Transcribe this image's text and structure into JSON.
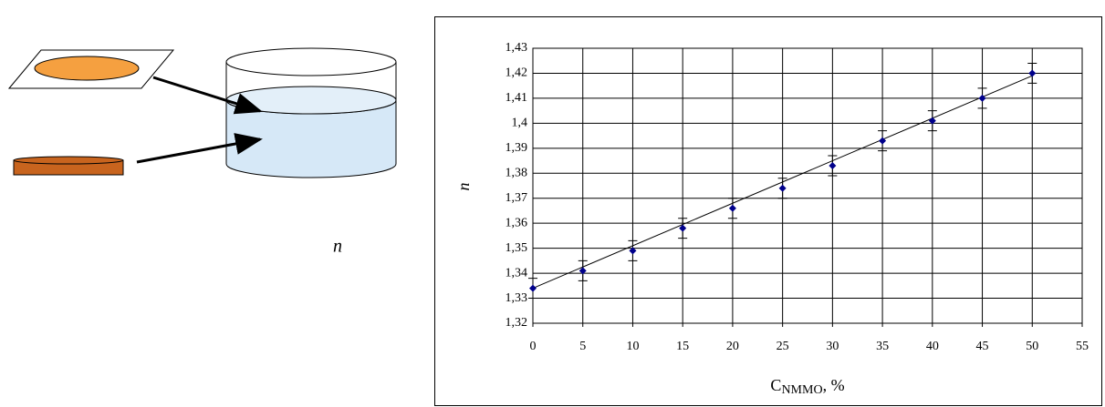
{
  "diagram_label": "n",
  "chart_data": {
    "type": "scatter",
    "xlabel": {
      "main": "C",
      "sub": "NMMO",
      "suffix": ", %"
    },
    "ylabel": "n",
    "x": [
      0,
      5,
      10,
      15,
      20,
      25,
      30,
      35,
      40,
      45,
      50
    ],
    "values": [
      1.334,
      1.341,
      1.349,
      1.358,
      1.366,
      1.374,
      1.383,
      1.393,
      1.401,
      1.41,
      1.42
    ],
    "errors": [
      0.004,
      0.004,
      0.004,
      0.004,
      0.004,
      0.004,
      0.004,
      0.004,
      0.004,
      0.004,
      0.004
    ],
    "color": "#00008b",
    "trendline": {
      "x": [
        0,
        50
      ],
      "values": [
        1.334,
        1.419
      ]
    },
    "xlim": [
      0,
      55
    ],
    "xticks": [
      0,
      5,
      10,
      15,
      20,
      25,
      30,
      35,
      40,
      45,
      50,
      55
    ],
    "ylim": [
      1.32,
      1.43
    ],
    "yticks": [
      {
        "value": 1.32,
        "label": "1,32"
      },
      {
        "value": 1.33,
        "label": "1,33"
      },
      {
        "value": 1.34,
        "label": "1,34"
      },
      {
        "value": 1.35,
        "label": "1,35"
      },
      {
        "value": 1.36,
        "label": "1,36"
      },
      {
        "value": 1.37,
        "label": "1,37"
      },
      {
        "value": 1.38,
        "label": "1,38"
      },
      {
        "value": 1.39,
        "label": "1,39"
      },
      {
        "value": 1.4,
        "label": "1,4"
      },
      {
        "value": 1.41,
        "label": "1,41"
      },
      {
        "value": 1.42,
        "label": "1,42"
      },
      {
        "value": 1.43,
        "label": "1,43"
      }
    ],
    "grid": true
  }
}
